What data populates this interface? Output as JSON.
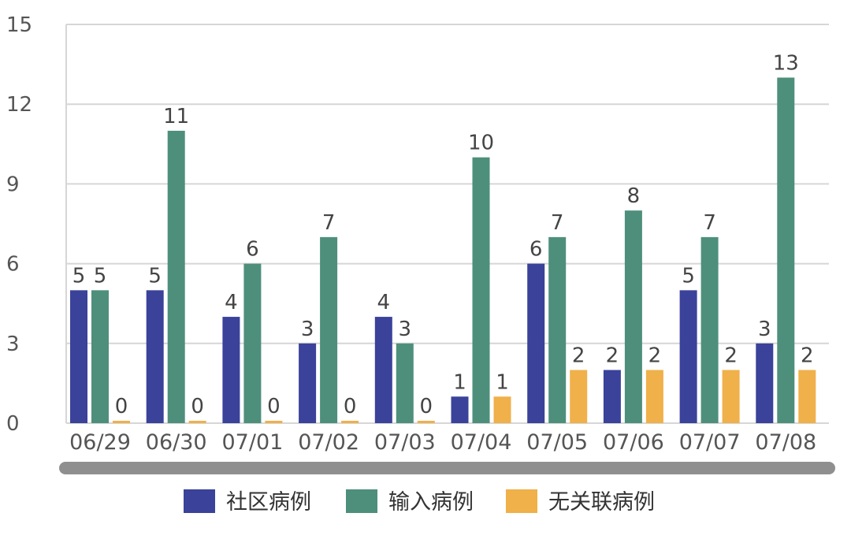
{
  "chart_data": {
    "type": "bar",
    "categories": [
      "06/29",
      "06/30",
      "07/01",
      "07/02",
      "07/03",
      "07/04",
      "07/05",
      "07/06",
      "07/07",
      "07/08"
    ],
    "series": [
      {
        "name": "社区病例",
        "color": "#3a429a",
        "values": [
          5,
          5,
          4,
          3,
          4,
          1,
          6,
          2,
          5,
          3
        ]
      },
      {
        "name": "输入病例",
        "color": "#4e8f7c",
        "values": [
          5,
          11,
          6,
          7,
          3,
          10,
          7,
          8,
          7,
          13
        ]
      },
      {
        "name": "无关联病例",
        "color": "#f0b04a",
        "values": [
          0,
          0,
          0,
          0,
          0,
          1,
          2,
          2,
          2,
          2
        ]
      }
    ],
    "ylim": [
      0,
      15
    ],
    "yticks": [
      0,
      3,
      6,
      9,
      12,
      15
    ],
    "grid": true,
    "legend_position": "bottom",
    "data_labels": true,
    "scrollbar": true
  }
}
